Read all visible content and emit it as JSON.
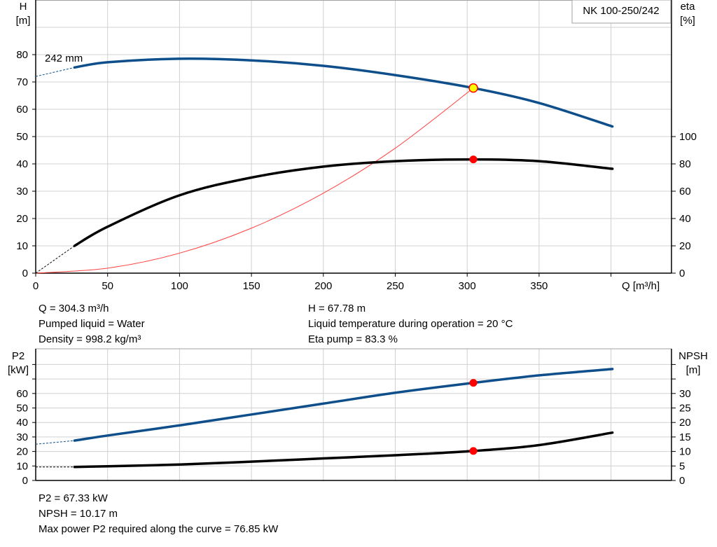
{
  "chart_data": [
    {
      "type": "line",
      "title": "NK 100-250/242",
      "xlabel": "Q [m³/h]",
      "xlim": [
        0,
        440
      ],
      "x_ticks": [
        0,
        50,
        100,
        150,
        200,
        250,
        300,
        350
      ],
      "grid": true,
      "left_axis": {
        "label": "H",
        "unit": "[m]",
        "ylim": [
          0,
          100
        ],
        "ticks": [
          0,
          10,
          20,
          30,
          40,
          50,
          60,
          70,
          80
        ]
      },
      "right_axis": {
        "label": "eta",
        "unit": "[%]",
        "ylim": [
          0,
          200
        ],
        "ticks": [
          0,
          20,
          40,
          60,
          80,
          100
        ]
      },
      "series": [
        {
          "name": "242 mm",
          "axis": "left",
          "color": "#0e4f8b",
          "x": [
            27,
            50,
            100,
            150,
            200,
            250,
            304.3,
            350,
            401
          ],
          "y": [
            75.3,
            77.2,
            78.5,
            77.9,
            75.9,
            72.5,
            67.78,
            62.3,
            53.7
          ],
          "extrapolated_to": [
            0,
            72
          ]
        },
        {
          "axis": "right",
          "color": "#000000",
          "x": [
            27,
            50,
            100,
            150,
            200,
            250,
            304.3,
            350,
            401
          ],
          "y": [
            20,
            34,
            57,
            70,
            78,
            82,
            83.3,
            82,
            76.4
          ],
          "extrapolated_to": [
            0,
            0
          ]
        },
        {
          "axis": "left",
          "color": "#ff4040",
          "kind": "system-curve",
          "x": [
            0,
            50,
            100,
            150,
            200,
            250,
            304.3
          ],
          "y": [
            0,
            1.83,
            7.32,
            16.47,
            29.28,
            45.75,
            67.78
          ]
        }
      ],
      "operating_point": {
        "Q": 304.3,
        "H": 67.78,
        "eta": 83.3
      }
    },
    {
      "type": "line",
      "xlim": [
        0,
        440
      ],
      "grid": true,
      "left_axis": {
        "label": "P2",
        "unit": "[kW]",
        "ylim": [
          0,
          90
        ],
        "ticks": [
          0,
          10,
          20,
          30,
          40,
          50,
          60
        ]
      },
      "right_axis": {
        "label": "NPSH",
        "unit": "[m]",
        "ylim": [
          0,
          45
        ],
        "ticks": [
          0,
          5,
          10,
          15,
          20,
          25,
          30
        ]
      },
      "series": [
        {
          "axis": "left",
          "color": "#0e4f8b",
          "x": [
            27,
            50,
            100,
            150,
            200,
            250,
            304.3,
            350,
            401
          ],
          "y": [
            27.5,
            31,
            38,
            45.5,
            53,
            60.5,
            67.33,
            72.5,
            76.85
          ],
          "extrapolated_to": [
            0,
            25
          ]
        },
        {
          "axis": "right",
          "color": "#000000",
          "x": [
            27,
            50,
            100,
            150,
            200,
            250,
            304.3,
            350,
            401
          ],
          "y": [
            4.65,
            4.9,
            5.5,
            6.5,
            7.6,
            8.7,
            10.17,
            12.2,
            16.5
          ],
          "extrapolated_to": [
            0,
            4.65
          ]
        }
      ],
      "operating_point": {
        "Q": 304.3,
        "P2": 67.33,
        "NPSH": 10.17
      }
    }
  ],
  "info_top": {
    "q": "Q = 304.3 m³/h",
    "liquid": "Pumped liquid = Water",
    "density": "Density = 998.2 kg/m³",
    "h": "H = 67.78 m",
    "temp": "Liquid temperature during operation = 20 °C",
    "eta": "Eta pump = 83.3 %"
  },
  "info_bottom": {
    "p2": "P2 = 67.33 kW",
    "npsh": "NPSH = 10.17 m",
    "max_p2": "Max power P2 required along the curve = 76.85 kW"
  },
  "labels": {
    "h": "H",
    "h_unit": "[m]",
    "eta": "eta",
    "eta_unit": "[%]",
    "q": "Q [m³/h]",
    "curve": "242 mm",
    "model": "NK 100-250/242",
    "p2": "P2",
    "p2_unit": "[kW]",
    "npsh": "NPSH",
    "npsh_unit": "[m]"
  },
  "colors": {
    "blue": "#0e4f8b",
    "black": "#000000",
    "red": "#ff0000",
    "system": "#ff4040",
    "yellow": "#ffff00",
    "grid": "#d0d0d0"
  }
}
